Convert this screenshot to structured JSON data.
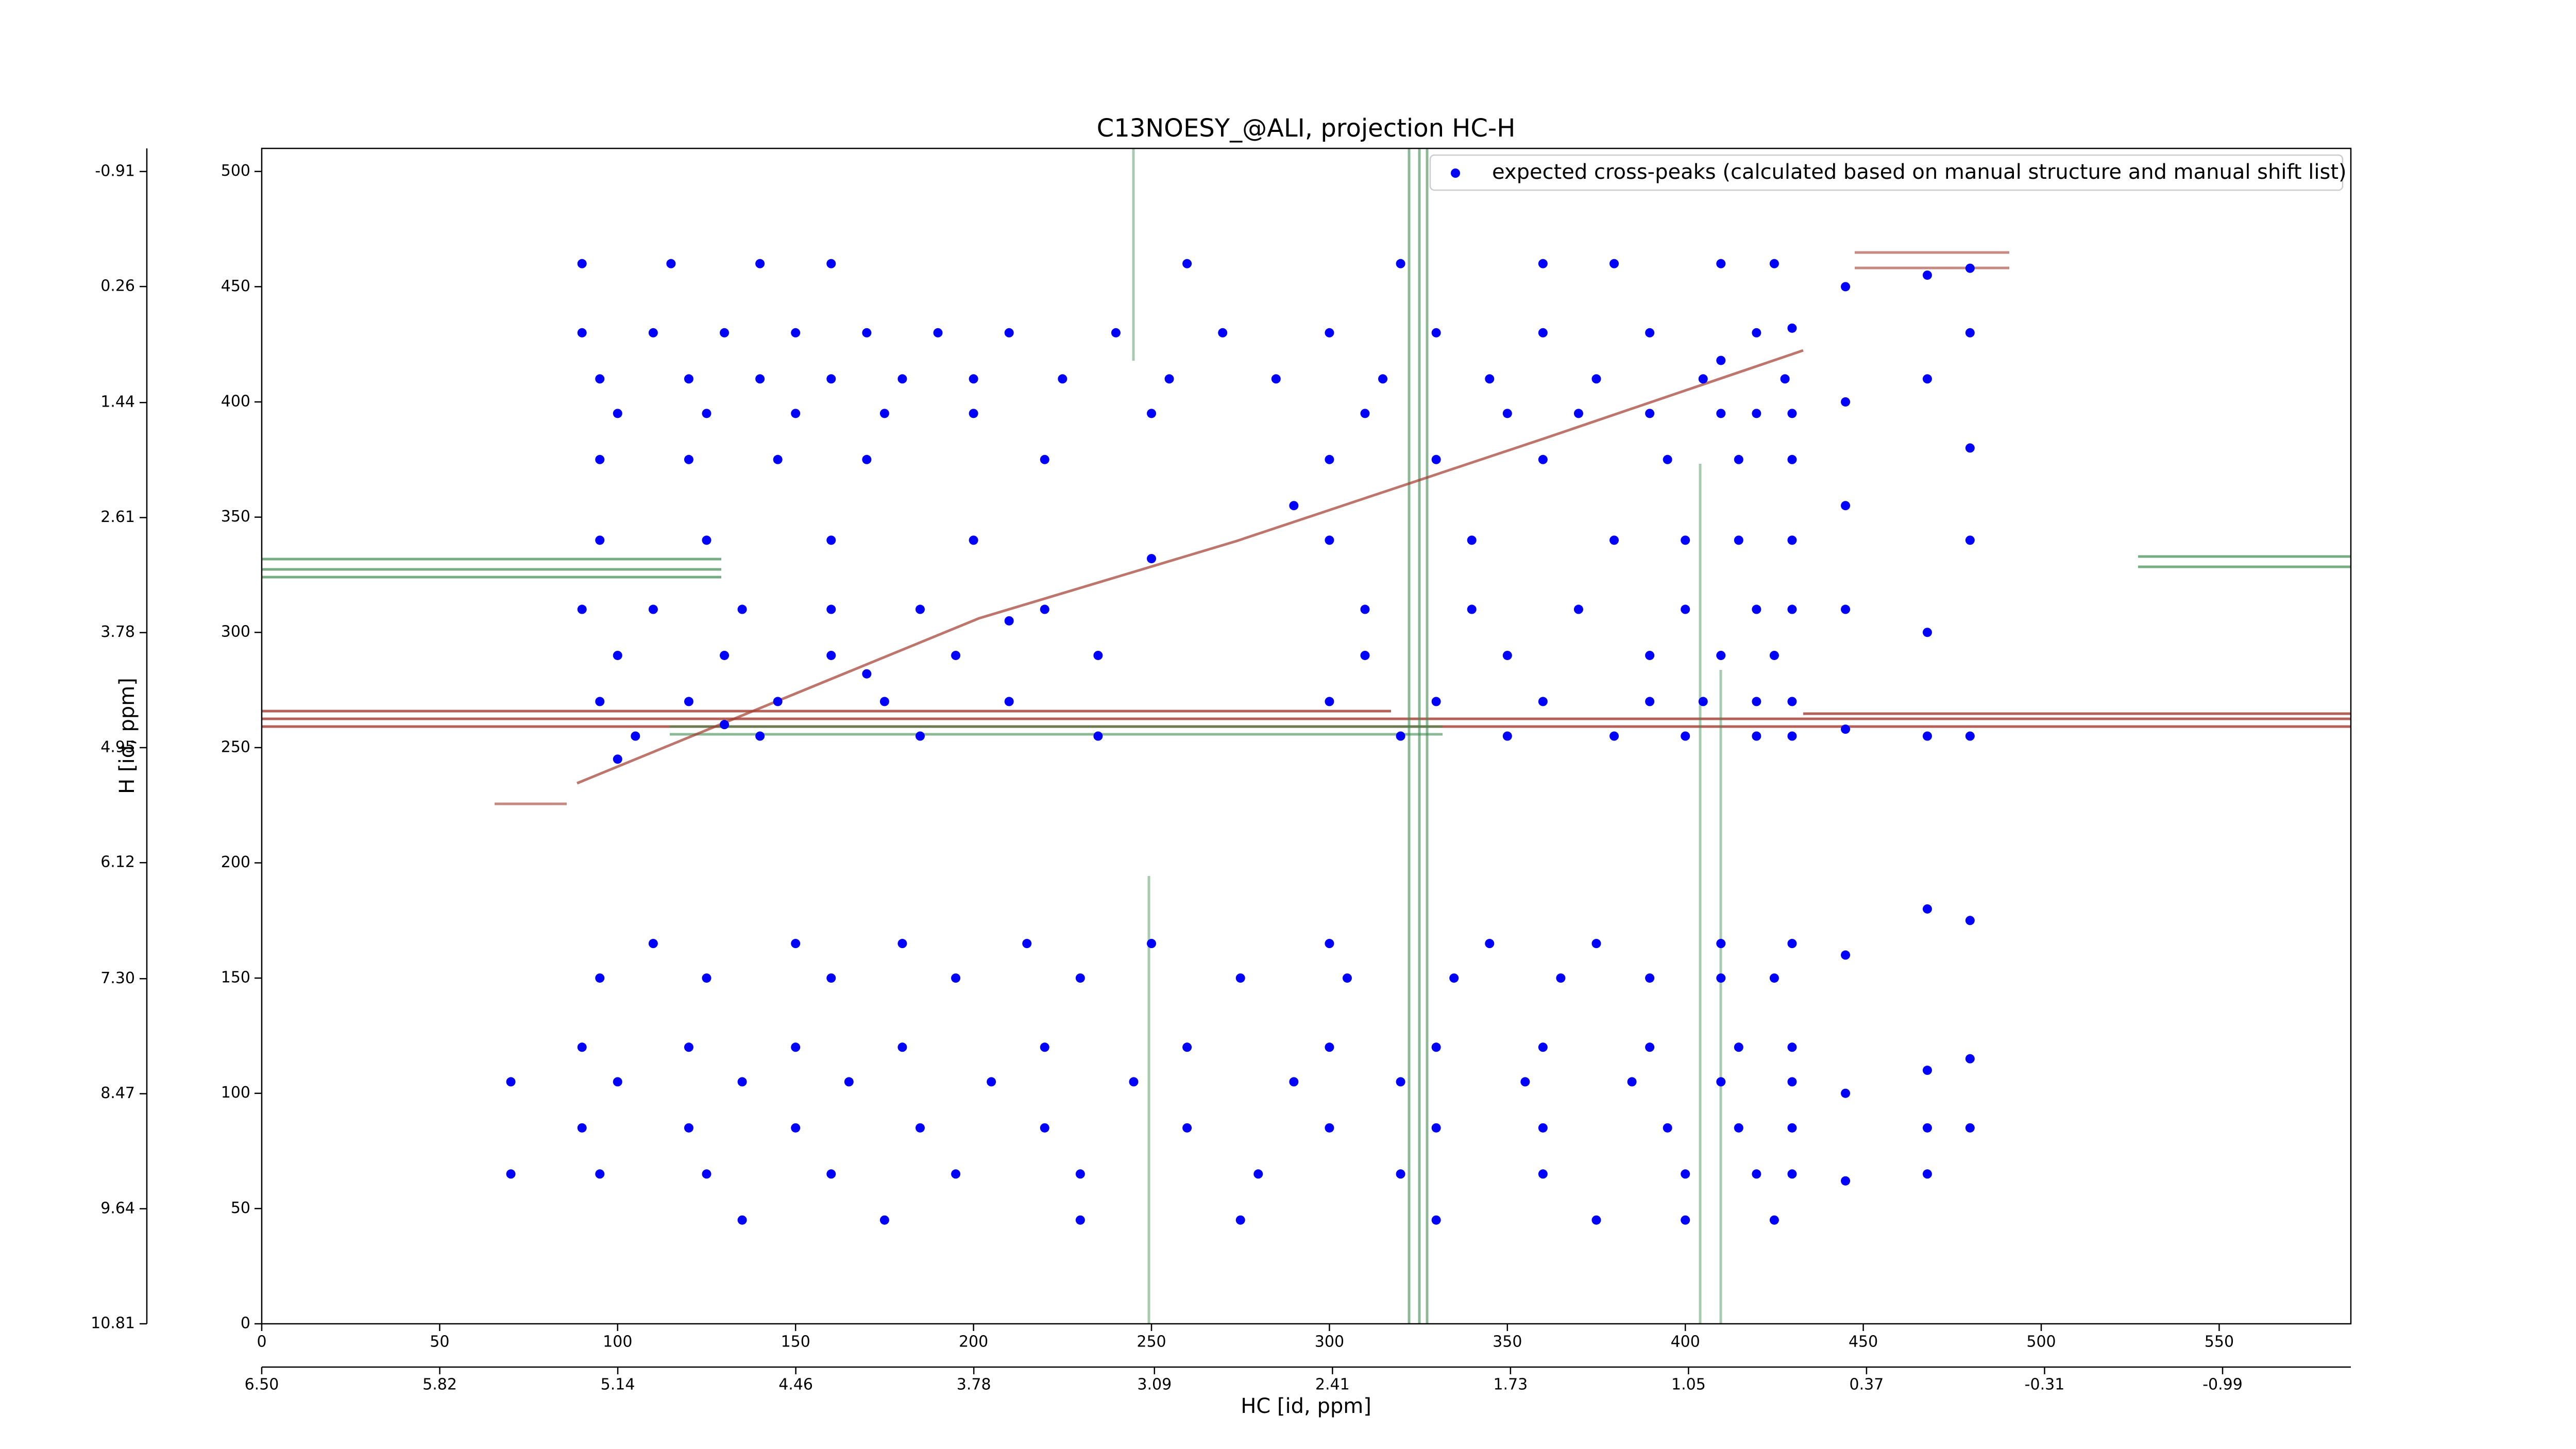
{
  "chart_data": {
    "type": "scatter",
    "title": "C13NOESY_@ALI, projection HC-H",
    "xlabel": "HC [id, ppm]",
    "ylabel": "H [id, ppm]",
    "xlim": [
      0,
      587
    ],
    "xticks": [
      0,
      50,
      100,
      150,
      200,
      250,
      300,
      350,
      400,
      450,
      500,
      550
    ],
    "ylim": [
      0,
      510
    ],
    "yticks": [
      0,
      50,
      100,
      150,
      200,
      250,
      300,
      350,
      400,
      450,
      500
    ],
    "x2lim": [
      6.5,
      -1.48
    ],
    "x2ticks": [
      {
        "value": 6.5,
        "label": "6.50"
      },
      5.82,
      5.14,
      4.46,
      3.78,
      3.09,
      2.41,
      1.73,
      1.05,
      0.37,
      -0.31,
      -0.99
    ],
    "y2lim": [
      10.81,
      -1.145
    ],
    "y2ticks": [
      10.81,
      9.64,
      8.47,
      {
        "value": 7.3,
        "label": "7.30"
      },
      6.12,
      4.95,
      3.78,
      2.61,
      1.44,
      0.26,
      -0.91
    ],
    "legend": "upper right",
    "series": [
      {
        "name": "expected cross-peaks (calculated based on manual structure and manual shift list)",
        "color": "#0000ff",
        "x": [
          90,
          115,
          140,
          160,
          260,
          320,
          360,
          380,
          410,
          425,
          90,
          110,
          130,
          150,
          170,
          190,
          210,
          240,
          270,
          300,
          330,
          360,
          390,
          420,
          95,
          120,
          140,
          160,
          180,
          200,
          225,
          255,
          285,
          315,
          345,
          375,
          405,
          428,
          100,
          125,
          150,
          175,
          200,
          250,
          310,
          350,
          390,
          410,
          420,
          430,
          95,
          120,
          145,
          170,
          220,
          300,
          360,
          395,
          415,
          430,
          100,
          130,
          170,
          210,
          250,
          290,
          330,
          370,
          410,
          430,
          95,
          125,
          160,
          200,
          300,
          340,
          380,
          400,
          415,
          430,
          90,
          110,
          135,
          160,
          185,
          220,
          310,
          340,
          370,
          400,
          420,
          430,
          100,
          130,
          160,
          195,
          235,
          310,
          350,
          390,
          410,
          425,
          95,
          120,
          145,
          175,
          210,
          300,
          330,
          360,
          390,
          405,
          420,
          430,
          105,
          140,
          185,
          235,
          320,
          350,
          380,
          400,
          420,
          430,
          110,
          150,
          180,
          215,
          250,
          300,
          345,
          375,
          410,
          430,
          95,
          125,
          160,
          195,
          230,
          275,
          305,
          335,
          365,
          390,
          410,
          425,
          90,
          120,
          150,
          180,
          220,
          260,
          300,
          330,
          360,
          390,
          415,
          430,
          70,
          100,
          135,
          165,
          205,
          245,
          290,
          320,
          355,
          385,
          410,
          430,
          90,
          120,
          150,
          185,
          220,
          260,
          300,
          330,
          360,
          395,
          415,
          430,
          70,
          95,
          125,
          160,
          195,
          230,
          280,
          320,
          360,
          400,
          420,
          430,
          135,
          175,
          230,
          275,
          330,
          375,
          400,
          425,
          445,
          445,
          445,
          445,
          445,
          445,
          445,
          445,
          468,
          468,
          468,
          468,
          468,
          468,
          468,
          468,
          480,
          480,
          480,
          480,
          480,
          480,
          480,
          480
        ],
        "values": [
          460,
          460,
          460,
          460,
          460,
          460,
          460,
          460,
          460,
          460,
          430,
          430,
          430,
          430,
          430,
          430,
          430,
          430,
          430,
          430,
          430,
          430,
          430,
          430,
          410,
          410,
          410,
          410,
          410,
          410,
          410,
          410,
          410,
          410,
          410,
          410,
          410,
          410,
          395,
          395,
          395,
          395,
          395,
          395,
          395,
          395,
          395,
          395,
          395,
          395,
          375,
          375,
          375,
          375,
          375,
          375,
          375,
          375,
          375,
          375,
          245,
          260,
          282,
          305,
          332,
          355,
          375,
          395,
          418,
          432,
          340,
          340,
          340,
          340,
          340,
          340,
          340,
          340,
          340,
          340,
          310,
          310,
          310,
          310,
          310,
          310,
          310,
          310,
          310,
          310,
          310,
          310,
          290,
          290,
          290,
          290,
          290,
          290,
          290,
          290,
          290,
          290,
          270,
          270,
          270,
          270,
          270,
          270,
          270,
          270,
          270,
          270,
          270,
          270,
          255,
          255,
          255,
          255,
          255,
          255,
          255,
          255,
          255,
          255,
          165,
          165,
          165,
          165,
          165,
          165,
          165,
          165,
          165,
          165,
          150,
          150,
          150,
          150,
          150,
          150,
          150,
          150,
          150,
          150,
          150,
          150,
          120,
          120,
          120,
          120,
          120,
          120,
          120,
          120,
          120,
          120,
          120,
          120,
          105,
          105,
          105,
          105,
          105,
          105,
          105,
          105,
          105,
          105,
          105,
          105,
          85,
          85,
          85,
          85,
          85,
          85,
          85,
          85,
          85,
          85,
          85,
          85,
          65,
          65,
          65,
          65,
          65,
          65,
          65,
          65,
          65,
          65,
          65,
          65,
          45,
          45,
          45,
          45,
          45,
          45,
          45,
          45,
          450,
          400,
          355,
          310,
          258,
          160,
          100,
          62,
          455,
          410,
          300,
          255,
          180,
          110,
          85,
          65,
          458,
          430,
          380,
          340,
          255,
          175,
          115,
          85
        ]
      }
    ]
  }
}
